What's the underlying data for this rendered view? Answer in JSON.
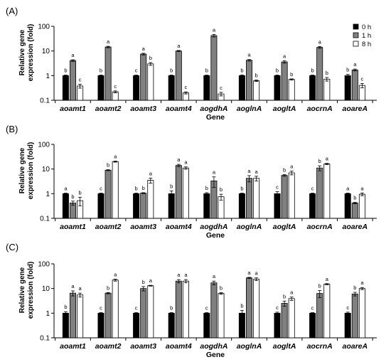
{
  "colors": {
    "t0": "#000000",
    "t1": "#808080",
    "t8": "#ffffff",
    "axis": "#000000"
  },
  "chart_data": [
    {
      "type": "bar",
      "panel_label": "(A)",
      "ylabel": "Relative gene expression (fold)",
      "xlabel": "Gene",
      "yscale": "log",
      "ylim": [
        0.1,
        100
      ],
      "yticks": [
        "0.1",
        "1",
        "10",
        "100"
      ],
      "grid": false,
      "legend": {
        "position": "top-right",
        "entries": [
          "0 h",
          "1 h",
          "8 h"
        ]
      },
      "categories": [
        "aoamt1",
        "aoamt2",
        "aoamt3",
        "aoamt4",
        "aogdhA",
        "aoglnA",
        "aogltA",
        "aocrnA",
        "aoareA"
      ],
      "series": [
        {
          "name": "0 h",
          "values": [
            1,
            1,
            1,
            1,
            1,
            1,
            1,
            1,
            1
          ],
          "errors": [
            0.05,
            0.05,
            0.05,
            0.05,
            0.05,
            0.07,
            0.05,
            0.05,
            0.12
          ],
          "letters": [
            "b",
            "b",
            "c",
            "b",
            "b",
            "b",
            "b",
            "b",
            "b"
          ]
        },
        {
          "name": "1 h",
          "values": [
            4.1,
            14.5,
            7.5,
            10,
            42,
            4.2,
            3.6,
            14,
            1.7
          ],
          "errors": [
            0.3,
            1,
            0.6,
            0.5,
            5,
            0.3,
            0.4,
            1.2,
            0.15
          ],
          "letters": [
            "a",
            "a",
            "a",
            "a",
            "a",
            "a",
            "a",
            "a",
            "a"
          ]
        },
        {
          "name": "8 h",
          "values": [
            0.38,
            0.22,
            3,
            0.2,
            0.18,
            0.62,
            0.7,
            0.72,
            0.4
          ],
          "errors": [
            0.07,
            0.02,
            0.4,
            0.02,
            0.03,
            0.04,
            0.04,
            0.12,
            0.08
          ],
          "letters": [
            "c",
            "c",
            "b",
            "c",
            "c",
            "b",
            "b",
            "b",
            "c"
          ]
        }
      ]
    },
    {
      "type": "bar",
      "panel_label": "(B)",
      "ylabel": "Relative gene expression (fold)",
      "xlabel": "Gene",
      "yscale": "log",
      "ylim": [
        0.1,
        100
      ],
      "yticks": [
        "0.1",
        "1",
        "10",
        "100"
      ],
      "grid": false,
      "categories": [
        "aoamt1",
        "aoamt2",
        "aoamt3",
        "aoamt4",
        "aogdhA",
        "aoglnA",
        "aogltA",
        "aocrnA",
        "aoareA"
      ],
      "series": [
        {
          "name": "0 h",
          "values": [
            1,
            1,
            1,
            1,
            1,
            1,
            1,
            1,
            1
          ],
          "errors": [
            0.05,
            0.05,
            0.05,
            0.3,
            0.1,
            0.05,
            0.2,
            0.05,
            0.05
          ],
          "letters": [
            "a",
            "c",
            "b",
            "b",
            "b",
            "b",
            "c",
            "c",
            "a"
          ]
        },
        {
          "name": "1 h",
          "values": [
            0.42,
            9,
            1.05,
            14,
            3.3,
            4.2,
            5.5,
            11,
            0.42
          ],
          "errors": [
            0.08,
            0.4,
            0.05,
            1.5,
            1.5,
            1.2,
            0.4,
            2.5,
            0.03
          ],
          "letters": [
            "b",
            "b",
            "b",
            "a",
            "a",
            "a",
            "b",
            "b",
            "b"
          ]
        },
        {
          "name": "8 h",
          "values": [
            0.52,
            20,
            3.5,
            11,
            0.75,
            4.2,
            7,
            16,
            0.95
          ],
          "errors": [
            0.2,
            1,
            0.8,
            1.2,
            0.2,
            0.9,
            1.2,
            1,
            0.12
          ],
          "letters": [
            "b",
            "a",
            "a",
            "a",
            "b",
            "a",
            "a",
            "a",
            "a"
          ]
        }
      ]
    },
    {
      "type": "bar",
      "panel_label": "(C)",
      "ylabel": "Relative gene expression (fold)",
      "xlabel": "Gene",
      "yscale": "log",
      "ylim": [
        0.1,
        100
      ],
      "yticks": [
        "0.1",
        "1",
        "10",
        "100"
      ],
      "grid": false,
      "categories": [
        "aoamt1",
        "aoamt2",
        "aoamt3",
        "aoamt4",
        "aogdhA",
        "aoglnA",
        "aogltA",
        "aocrnA",
        "aoareA"
      ],
      "series": [
        {
          "name": "0 h",
          "values": [
            1,
            1,
            1,
            1,
            1,
            1,
            1,
            1,
            1
          ],
          "errors": [
            0.15,
            0.05,
            0.05,
            0.05,
            0.05,
            0.3,
            0.1,
            0.05,
            0.1
          ],
          "letters": [
            "b",
            "c",
            "c",
            "b",
            "c",
            "b",
            "c",
            "c",
            "c"
          ]
        },
        {
          "name": "1 h",
          "values": [
            6.5,
            6.5,
            10,
            20,
            17,
            27,
            2.5,
            6.3,
            6
          ],
          "errors": [
            1.5,
            0.4,
            2,
            3,
            3,
            1.5,
            0.6,
            2,
            1
          ],
          "letters": [
            "a",
            "b",
            "b",
            "a",
            "a",
            "a",
            "b",
            "b",
            "b"
          ]
        },
        {
          "name": "8 h",
          "values": [
            5.5,
            22,
            13,
            20,
            6.3,
            24,
            3.9,
            15,
            10
          ],
          "errors": [
            1,
            2,
            0.5,
            3,
            0.5,
            3,
            0.6,
            0.8,
            1
          ],
          "letters": [
            "a",
            "a",
            "a",
            "a",
            "b",
            "a",
            "a",
            "a",
            "a"
          ]
        }
      ]
    }
  ]
}
